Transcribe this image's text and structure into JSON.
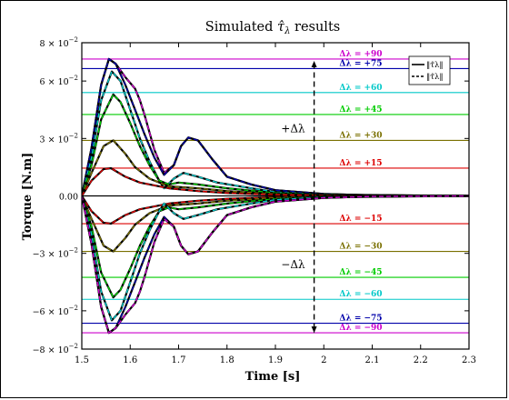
{
  "chart_data": {
    "type": "line",
    "title": "Simulated τ̂λ results",
    "title_main": "Simulated ",
    "title_symbol": "τ̂",
    "title_sub": "λ",
    "title_tail": " results",
    "xlabel": "Time [s]",
    "ylabel": "Torque [N.m]",
    "xlim": [
      1.5,
      2.3
    ],
    "ylim": [
      -0.08,
      0.08
    ],
    "x_ticks": [
      {
        "v": 1.5,
        "label": "1.5"
      },
      {
        "v": 1.6,
        "label": "1.6"
      },
      {
        "v": 1.7,
        "label": "1.7"
      },
      {
        "v": 1.8,
        "label": "1.8"
      },
      {
        "v": 1.9,
        "label": "1.9"
      },
      {
        "v": 2.0,
        "label": "2"
      },
      {
        "v": 2.1,
        "label": "2.1"
      },
      {
        "v": 2.2,
        "label": "2.2"
      },
      {
        "v": 2.3,
        "label": "2.3"
      }
    ],
    "y_ticks": [
      {
        "v": 0.08,
        "mant": "8 × 10",
        "exp": "−2"
      },
      {
        "v": 0.06,
        "mant": "6 × 10",
        "exp": "−2"
      },
      {
        "v": 0.03,
        "mant": "3 × 10",
        "exp": "−2"
      },
      {
        "v": 0.0,
        "mant": "0.00",
        "exp": ""
      },
      {
        "v": -0.03,
        "mant": "−3 × 10",
        "exp": "−2"
      },
      {
        "v": -0.06,
        "mant": "−6 × 10",
        "exp": "−2"
      },
      {
        "v": -0.08,
        "mant": "−8 × 10",
        "exp": "−2"
      }
    ],
    "grid": false,
    "legend": {
      "placement": "top-right",
      "entries": [
        {
          "style": "solid",
          "label": "‖τ̂λ‖"
        },
        {
          "style": "dashed",
          "label": "‖τ̂λ‖"
        }
      ]
    },
    "reference_lines": [
      {
        "label": "Δλ = +90",
        "y": 0.0715,
        "color": "#cc00cc"
      },
      {
        "label": "Δλ = +75",
        "y": 0.0665,
        "color": "#0000aa"
      },
      {
        "label": "Δλ = +60",
        "y": 0.054,
        "color": "#00c8c8"
      },
      {
        "label": "Δλ = +45",
        "y": 0.0425,
        "color": "#00cc00"
      },
      {
        "label": "Δλ = +30",
        "y": 0.029,
        "color": "#7a7000"
      },
      {
        "label": "Δλ = +15",
        "y": 0.0145,
        "color": "#dd0000"
      },
      {
        "label": "Δλ = −15",
        "y": -0.0145,
        "color": "#dd0000"
      },
      {
        "label": "Δλ = −30",
        "y": -0.029,
        "color": "#7a7000"
      },
      {
        "label": "Δλ = −45",
        "y": -0.0425,
        "color": "#00cc00"
      },
      {
        "label": "Δλ = −60",
        "y": -0.054,
        "color": "#00c8c8"
      },
      {
        "label": "Δλ = −75",
        "y": -0.0665,
        "color": "#0000aa"
      },
      {
        "label": "Δλ = −90",
        "y": -0.0715,
        "color": "#cc00cc"
      }
    ],
    "zero_line": {
      "y": 0.0,
      "color": "#000000"
    },
    "arrow_up": {
      "label": "+Δλ",
      "x": 1.98,
      "from": 0.0,
      "to": 0.0705
    },
    "arrow_down": {
      "label": "−Δλ",
      "x": 1.98,
      "from": 0.0,
      "to": -0.0715
    },
    "series": [
      {
        "name": "Δλ = +90",
        "color": "#cc00cc",
        "points": [
          [
            1.5,
            0
          ],
          [
            1.52,
            0.025
          ],
          [
            1.54,
            0.058
          ],
          [
            1.556,
            0.0715
          ],
          [
            1.57,
            0.069
          ],
          [
            1.59,
            0.062
          ],
          [
            1.61,
            0.056
          ],
          [
            1.62,
            0.05
          ],
          [
            1.63,
            0.042
          ],
          [
            1.65,
            0.024
          ],
          [
            1.67,
            0.012
          ],
          [
            1.69,
            0.016
          ],
          [
            1.705,
            0.026
          ],
          [
            1.72,
            0.0305
          ],
          [
            1.74,
            0.029
          ],
          [
            1.77,
            0.019
          ],
          [
            1.8,
            0.01
          ],
          [
            1.85,
            0.006
          ],
          [
            1.9,
            0.003
          ],
          [
            2.0,
            0.001
          ],
          [
            2.1,
            0.0003
          ],
          [
            2.3,
            0
          ]
        ]
      },
      {
        "name": "Δλ = +75",
        "color": "#0000aa",
        "points": [
          [
            1.5,
            0
          ],
          [
            1.52,
            0.025
          ],
          [
            1.54,
            0.058
          ],
          [
            1.556,
            0.0715
          ],
          [
            1.57,
            0.069
          ],
          [
            1.59,
            0.058
          ],
          [
            1.61,
            0.045
          ],
          [
            1.63,
            0.032
          ],
          [
            1.65,
            0.02
          ],
          [
            1.67,
            0.011
          ],
          [
            1.69,
            0.016
          ],
          [
            1.705,
            0.026
          ],
          [
            1.72,
            0.0305
          ],
          [
            1.74,
            0.029
          ],
          [
            1.77,
            0.019
          ],
          [
            1.8,
            0.01
          ],
          [
            1.85,
            0.006
          ],
          [
            1.9,
            0.003
          ],
          [
            2.0,
            0.001
          ],
          [
            2.1,
            0.0003
          ],
          [
            2.3,
            0
          ]
        ]
      },
      {
        "name": "Δλ = +60",
        "color": "#00c8c8",
        "points": [
          [
            1.5,
            0
          ],
          [
            1.52,
            0.02
          ],
          [
            1.54,
            0.05
          ],
          [
            1.562,
            0.065
          ],
          [
            1.58,
            0.06
          ],
          [
            1.6,
            0.045
          ],
          [
            1.62,
            0.03
          ],
          [
            1.64,
            0.018
          ],
          [
            1.66,
            0.008
          ],
          [
            1.67,
            0.004
          ],
          [
            1.69,
            0.009
          ],
          [
            1.71,
            0.012
          ],
          [
            1.74,
            0.01
          ],
          [
            1.78,
            0.007
          ],
          [
            1.85,
            0.004
          ],
          [
            1.9,
            0.002
          ],
          [
            2.0,
            0.0007
          ],
          [
            2.3,
            0
          ]
        ]
      },
      {
        "name": "Δλ = +45",
        "color": "#00cc00",
        "points": [
          [
            1.5,
            0
          ],
          [
            1.52,
            0.016
          ],
          [
            1.54,
            0.04
          ],
          [
            1.565,
            0.053
          ],
          [
            1.58,
            0.049
          ],
          [
            1.6,
            0.038
          ],
          [
            1.62,
            0.026
          ],
          [
            1.64,
            0.016
          ],
          [
            1.66,
            0.008
          ],
          [
            1.68,
            0.006
          ],
          [
            1.7,
            0.007
          ],
          [
            1.74,
            0.006
          ],
          [
            1.8,
            0.004
          ],
          [
            1.9,
            0.0015
          ],
          [
            2.0,
            0.0005
          ],
          [
            2.3,
            0
          ]
        ]
      },
      {
        "name": "Δλ = +30",
        "color": "#7a7000",
        "points": [
          [
            1.5,
            0
          ],
          [
            1.52,
            0.012
          ],
          [
            1.545,
            0.026
          ],
          [
            1.565,
            0.029
          ],
          [
            1.59,
            0.022
          ],
          [
            1.61,
            0.015
          ],
          [
            1.64,
            0.009
          ],
          [
            1.68,
            0.005
          ],
          [
            1.74,
            0.004
          ],
          [
            1.8,
            0.0025
          ],
          [
            1.9,
            0.001
          ],
          [
            2.0,
            0.0003
          ],
          [
            2.3,
            0
          ]
        ]
      },
      {
        "name": "Δλ = +15",
        "color": "#dd0000",
        "points": [
          [
            1.5,
            0
          ],
          [
            1.52,
            0.008
          ],
          [
            1.545,
            0.014
          ],
          [
            1.56,
            0.0145
          ],
          [
            1.59,
            0.01
          ],
          [
            1.62,
            0.007
          ],
          [
            1.68,
            0.004
          ],
          [
            1.74,
            0.0025
          ],
          [
            1.8,
            0.0015
          ],
          [
            1.9,
            0.0006
          ],
          [
            2.0,
            0.0002
          ],
          [
            2.3,
            0
          ]
        ]
      },
      {
        "name": "Δλ = −15",
        "color": "#dd0000",
        "points": [
          [
            1.5,
            0
          ],
          [
            1.52,
            -0.008
          ],
          [
            1.545,
            -0.014
          ],
          [
            1.56,
            -0.0145
          ],
          [
            1.59,
            -0.01
          ],
          [
            1.62,
            -0.007
          ],
          [
            1.68,
            -0.004
          ],
          [
            1.74,
            -0.0025
          ],
          [
            1.8,
            -0.0015
          ],
          [
            1.9,
            -0.0006
          ],
          [
            2.0,
            -0.0002
          ],
          [
            2.3,
            0
          ]
        ]
      },
      {
        "name": "Δλ = −30",
        "color": "#7a7000",
        "points": [
          [
            1.5,
            0
          ],
          [
            1.52,
            -0.012
          ],
          [
            1.545,
            -0.026
          ],
          [
            1.565,
            -0.029
          ],
          [
            1.59,
            -0.022
          ],
          [
            1.61,
            -0.015
          ],
          [
            1.64,
            -0.009
          ],
          [
            1.68,
            -0.005
          ],
          [
            1.74,
            -0.004
          ],
          [
            1.8,
            -0.0025
          ],
          [
            1.9,
            -0.001
          ],
          [
            2.0,
            -0.0003
          ],
          [
            2.3,
            0
          ]
        ]
      },
      {
        "name": "Δλ = −45",
        "color": "#00cc00",
        "points": [
          [
            1.5,
            0
          ],
          [
            1.52,
            -0.016
          ],
          [
            1.54,
            -0.04
          ],
          [
            1.565,
            -0.053
          ],
          [
            1.58,
            -0.049
          ],
          [
            1.6,
            -0.038
          ],
          [
            1.62,
            -0.026
          ],
          [
            1.64,
            -0.016
          ],
          [
            1.66,
            -0.008
          ],
          [
            1.68,
            -0.006
          ],
          [
            1.7,
            -0.007
          ],
          [
            1.74,
            -0.006
          ],
          [
            1.8,
            -0.004
          ],
          [
            1.9,
            -0.0015
          ],
          [
            2.0,
            -0.0005
          ],
          [
            2.3,
            0
          ]
        ]
      },
      {
        "name": "Δλ = −60",
        "color": "#00c8c8",
        "points": [
          [
            1.5,
            0
          ],
          [
            1.52,
            -0.02
          ],
          [
            1.54,
            -0.05
          ],
          [
            1.562,
            -0.065
          ],
          [
            1.58,
            -0.06
          ],
          [
            1.6,
            -0.045
          ],
          [
            1.62,
            -0.03
          ],
          [
            1.64,
            -0.018
          ],
          [
            1.66,
            -0.008
          ],
          [
            1.67,
            -0.004
          ],
          [
            1.69,
            -0.009
          ],
          [
            1.71,
            -0.012
          ],
          [
            1.74,
            -0.01
          ],
          [
            1.78,
            -0.007
          ],
          [
            1.85,
            -0.004
          ],
          [
            1.9,
            -0.002
          ],
          [
            2.0,
            -0.0007
          ],
          [
            2.3,
            0
          ]
        ]
      },
      {
        "name": "Δλ = −75",
        "color": "#0000aa",
        "points": [
          [
            1.5,
            0
          ],
          [
            1.52,
            -0.025
          ],
          [
            1.54,
            -0.058
          ],
          [
            1.556,
            -0.0715
          ],
          [
            1.57,
            -0.069
          ],
          [
            1.59,
            -0.058
          ],
          [
            1.61,
            -0.045
          ],
          [
            1.63,
            -0.032
          ],
          [
            1.65,
            -0.02
          ],
          [
            1.67,
            -0.011
          ],
          [
            1.69,
            -0.016
          ],
          [
            1.705,
            -0.026
          ],
          [
            1.72,
            -0.0305
          ],
          [
            1.74,
            -0.029
          ],
          [
            1.77,
            -0.019
          ],
          [
            1.8,
            -0.01
          ],
          [
            1.85,
            -0.006
          ],
          [
            1.9,
            -0.003
          ],
          [
            2.0,
            -0.001
          ],
          [
            2.1,
            -0.0003
          ],
          [
            2.3,
            0
          ]
        ]
      },
      {
        "name": "Δλ = −90",
        "color": "#cc00cc",
        "points": [
          [
            1.5,
            0
          ],
          [
            1.52,
            -0.025
          ],
          [
            1.54,
            -0.058
          ],
          [
            1.556,
            -0.0715
          ],
          [
            1.57,
            -0.069
          ],
          [
            1.59,
            -0.062
          ],
          [
            1.61,
            -0.056
          ],
          [
            1.62,
            -0.05
          ],
          [
            1.63,
            -0.042
          ],
          [
            1.65,
            -0.024
          ],
          [
            1.67,
            -0.012
          ],
          [
            1.69,
            -0.016
          ],
          [
            1.705,
            -0.026
          ],
          [
            1.72,
            -0.0305
          ],
          [
            1.74,
            -0.029
          ],
          [
            1.77,
            -0.019
          ],
          [
            1.8,
            -0.01
          ],
          [
            1.85,
            -0.006
          ],
          [
            1.9,
            -0.003
          ],
          [
            2.0,
            -0.001
          ],
          [
            2.1,
            -0.0003
          ],
          [
            2.3,
            0
          ]
        ]
      }
    ]
  }
}
